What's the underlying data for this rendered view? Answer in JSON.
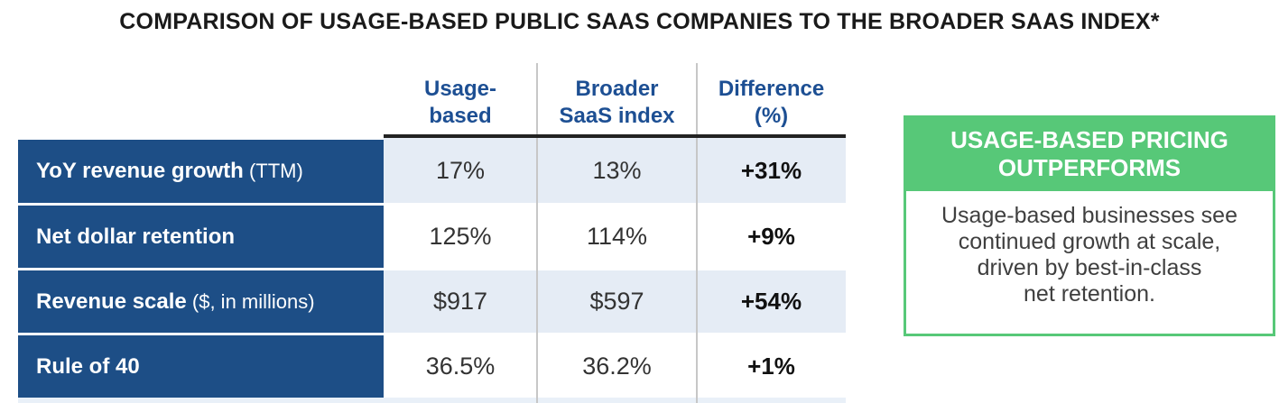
{
  "title": "COMPARISON OF USAGE-BASED PUBLIC SAAS COMPANIES TO THE BROADER SAAS INDEX*",
  "table": {
    "columns": [
      {
        "lines": [
          "Usage-",
          "based"
        ]
      },
      {
        "lines": [
          "Broader",
          "SaaS index"
        ]
      },
      {
        "lines": [
          "Difference",
          "(%)"
        ]
      }
    ],
    "rows": [
      {
        "label_bold": "YoY revenue growth",
        "label_normal": " (TTM)",
        "usage_based": "17%",
        "broader_saas": "13%",
        "difference": "+31%"
      },
      {
        "label_bold": "Net dollar retention",
        "label_normal": "",
        "usage_based": "125%",
        "broader_saas": "114%",
        "difference": "+9%"
      },
      {
        "label_bold": "Revenue scale",
        "label_normal": " ($, in millions)",
        "usage_based": "$917",
        "broader_saas": "$597",
        "difference": "+54%"
      },
      {
        "label_bold": "Rule of 40",
        "label_normal": "",
        "usage_based": "36.5%",
        "broader_saas": "36.2%",
        "difference": "+1%"
      }
    ]
  },
  "callout": {
    "header_lines": [
      "USAGE-BASED PRICING",
      "OUTPERFORMS"
    ],
    "body_lines": [
      "Usage-based businesses see",
      "continued growth at scale,",
      "driven by best-in-class",
      "net retention."
    ]
  },
  "colors": {
    "row_label_blue": "#1d4e86",
    "header_text_blue": "#1d4f93",
    "light_blue_band": "#e5ecf5",
    "callout_green": "#57c878",
    "value_text": "#333333",
    "callout_body_text": "#3f3f3f"
  },
  "chart_data": {
    "type": "table",
    "title": "COMPARISON OF USAGE-BASED PUBLIC SAAS COMPANIES TO THE BROADER SAAS INDEX*",
    "columns": [
      "Metric",
      "Usage-based",
      "Broader SaaS index",
      "Difference (%)"
    ],
    "rows": [
      [
        "YoY revenue growth (TTM)",
        "17%",
        "13%",
        "+31%"
      ],
      [
        "Net dollar retention",
        "125%",
        "114%",
        "+9%"
      ],
      [
        "Revenue scale ($, in millions)",
        "$917",
        "$597",
        "+54%"
      ],
      [
        "Rule of 40",
        "36.5%",
        "36.2%",
        "+1%"
      ]
    ],
    "annotation": {
      "heading": "USAGE-BASED PRICING OUTPERFORMS",
      "body": "Usage-based businesses see continued growth at scale, driven by best-in-class net retention."
    }
  }
}
